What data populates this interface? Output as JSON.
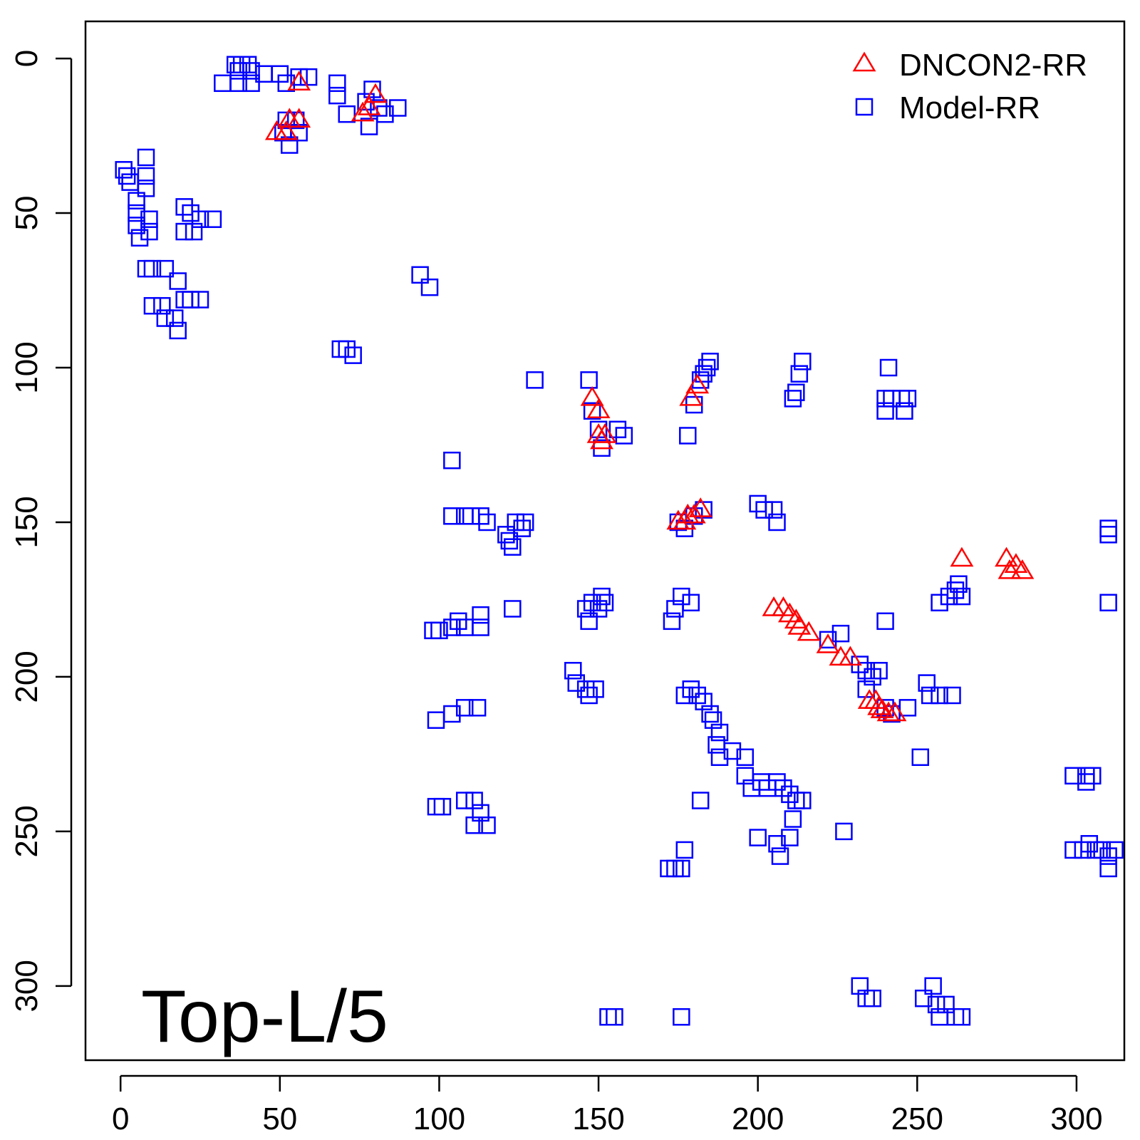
{
  "chart_data": {
    "type": "scatter",
    "title": "",
    "xlabel": "",
    "ylabel": "",
    "xlim": [
      -11,
      315
    ],
    "ylim": [
      -12,
      324
    ],
    "y_axis_inverted": true,
    "x_ticks": [
      0,
      50,
      100,
      150,
      200,
      250,
      300
    ],
    "x_tick_labels": [
      "0",
      "50",
      "100",
      "150",
      "200",
      "250",
      "300"
    ],
    "y_ticks": [
      0,
      50,
      100,
      150,
      200,
      250,
      300
    ],
    "y_tick_labels": [
      "0",
      "50",
      "100",
      "150",
      "200",
      "250",
      "300"
    ],
    "annotation": "Top-L/5",
    "legend_position": "top-right",
    "grid": false,
    "series": [
      {
        "name": "DNCON2-RR",
        "marker": "triangle",
        "color": "#ff0000",
        "points": [
          [
            56,
            8
          ],
          [
            80,
            12
          ],
          [
            76,
            18
          ],
          [
            78,
            16
          ],
          [
            53,
            20
          ],
          [
            56,
            20
          ],
          [
            49,
            24
          ],
          [
            52,
            24
          ],
          [
            148,
            110
          ],
          [
            150,
            114
          ],
          [
            150,
            122
          ],
          [
            152,
            122
          ],
          [
            151,
            124
          ],
          [
            181,
            106
          ],
          [
            179,
            110
          ],
          [
            175,
            150
          ],
          [
            177,
            150
          ],
          [
            178,
            148
          ],
          [
            180,
            148
          ],
          [
            182,
            146
          ],
          [
            264,
            162
          ],
          [
            278,
            162
          ],
          [
            279,
            166
          ],
          [
            281,
            164
          ],
          [
            283,
            166
          ],
          [
            205,
            178
          ],
          [
            208,
            178
          ],
          [
            210,
            180
          ],
          [
            212,
            182
          ],
          [
            213,
            184
          ],
          [
            216,
            186
          ],
          [
            222,
            190
          ],
          [
            226,
            194
          ],
          [
            229,
            194
          ],
          [
            235,
            208
          ],
          [
            237,
            208
          ],
          [
            238,
            210
          ],
          [
            239,
            211
          ],
          [
            241,
            212
          ],
          [
            243,
            212
          ]
        ]
      },
      {
        "name": "Model-RR",
        "marker": "square",
        "color": "#0000ff",
        "points": [
          [
            32,
            8
          ],
          [
            36,
            2
          ],
          [
            37,
            4
          ],
          [
            38,
            2
          ],
          [
            40,
            2
          ],
          [
            41,
            4
          ],
          [
            37,
            8
          ],
          [
            41,
            8
          ],
          [
            45,
            5
          ],
          [
            50,
            5
          ],
          [
            52,
            8
          ],
          [
            56,
            6
          ],
          [
            59,
            6
          ],
          [
            52,
            20
          ],
          [
            55,
            20
          ],
          [
            51,
            24
          ],
          [
            53,
            28
          ],
          [
            56,
            24
          ],
          [
            68,
            8
          ],
          [
            68,
            12
          ],
          [
            71,
            18
          ],
          [
            77,
            14
          ],
          [
            79,
            10
          ],
          [
            81,
            16
          ],
          [
            83,
            18
          ],
          [
            87,
            16
          ],
          [
            78,
            22
          ],
          [
            1,
            36
          ],
          [
            2,
            38
          ],
          [
            3,
            40
          ],
          [
            8,
            32
          ],
          [
            8,
            38
          ],
          [
            8,
            42
          ],
          [
            5,
            46
          ],
          [
            5,
            50
          ],
          [
            5,
            54
          ],
          [
            6,
            58
          ],
          [
            9,
            52
          ],
          [
            9,
            56
          ],
          [
            20,
            48
          ],
          [
            22,
            50
          ],
          [
            25,
            52
          ],
          [
            29,
            52
          ],
          [
            20,
            56
          ],
          [
            23,
            56
          ],
          [
            8,
            68
          ],
          [
            10,
            68
          ],
          [
            14,
            68
          ],
          [
            18,
            72
          ],
          [
            10,
            80
          ],
          [
            13,
            80
          ],
          [
            14,
            84
          ],
          [
            17,
            84
          ],
          [
            18,
            88
          ],
          [
            20,
            78
          ],
          [
            22,
            78
          ],
          [
            25,
            78
          ],
          [
            94,
            70
          ],
          [
            97,
            74
          ],
          [
            69,
            94
          ],
          [
            71,
            94
          ],
          [
            73,
            96
          ],
          [
            130,
            104
          ],
          [
            147,
            104
          ],
          [
            148,
            114
          ],
          [
            150,
            120
          ],
          [
            151,
            126
          ],
          [
            156,
            120
          ],
          [
            158,
            122
          ],
          [
            180,
            112
          ],
          [
            182,
            104
          ],
          [
            183,
            102
          ],
          [
            184,
            100
          ],
          [
            185,
            98
          ],
          [
            178,
            122
          ],
          [
            211,
            110
          ],
          [
            212,
            108
          ],
          [
            213,
            102
          ],
          [
            214,
            98
          ],
          [
            241,
            100
          ],
          [
            240,
            110
          ],
          [
            240,
            114
          ],
          [
            242,
            110
          ],
          [
            245,
            110
          ],
          [
            247,
            110
          ],
          [
            246,
            114
          ],
          [
            104,
            130
          ],
          [
            104,
            148
          ],
          [
            108,
            148
          ],
          [
            110,
            148
          ],
          [
            113,
            148
          ],
          [
            115,
            150
          ],
          [
            121,
            154
          ],
          [
            122,
            156
          ],
          [
            123,
            158
          ],
          [
            124,
            150
          ],
          [
            126,
            152
          ],
          [
            127,
            150
          ],
          [
            175,
            150
          ],
          [
            177,
            152
          ],
          [
            180,
            148
          ],
          [
            183,
            146
          ],
          [
            200,
            144
          ],
          [
            202,
            146
          ],
          [
            205,
            146
          ],
          [
            206,
            150
          ],
          [
            100,
            185
          ],
          [
            98,
            185
          ],
          [
            104,
            184
          ],
          [
            106,
            182
          ],
          [
            108,
            184
          ],
          [
            113,
            180
          ],
          [
            113,
            184
          ],
          [
            123,
            178
          ],
          [
            146,
            178
          ],
          [
            147,
            182
          ],
          [
            148,
            176
          ],
          [
            150,
            178
          ],
          [
            151,
            174
          ],
          [
            152,
            176
          ],
          [
            173,
            182
          ],
          [
            176,
            174
          ],
          [
            174,
            178
          ],
          [
            179,
            176
          ],
          [
            240,
            182
          ],
          [
            257,
            176
          ],
          [
            260,
            174
          ],
          [
            262,
            172
          ],
          [
            263,
            170
          ],
          [
            264,
            174
          ],
          [
            310,
            152
          ],
          [
            310,
            154
          ],
          [
            310,
            176
          ],
          [
            142,
            198
          ],
          [
            143,
            202
          ],
          [
            146,
            204
          ],
          [
            147,
            206
          ],
          [
            149,
            204
          ],
          [
            99,
            214
          ],
          [
            104,
            212
          ],
          [
            108,
            210
          ],
          [
            112,
            210
          ],
          [
            177,
            206
          ],
          [
            179,
            204
          ],
          [
            181,
            206
          ],
          [
            183,
            208
          ],
          [
            185,
            212
          ],
          [
            186,
            214
          ],
          [
            188,
            218
          ],
          [
            187,
            222
          ],
          [
            188,
            226
          ],
          [
            192,
            224
          ],
          [
            196,
            226
          ],
          [
            196,
            232
          ],
          [
            198,
            236
          ],
          [
            201,
            234
          ],
          [
            203,
            236
          ],
          [
            206,
            234
          ],
          [
            208,
            236
          ],
          [
            210,
            238
          ],
          [
            212,
            240
          ],
          [
            214,
            240
          ],
          [
            211,
            246
          ],
          [
            182,
            240
          ],
          [
            236,
            200
          ],
          [
            238,
            198
          ],
          [
            234,
            204
          ],
          [
            240,
            210
          ],
          [
            242,
            212
          ],
          [
            247,
            210
          ],
          [
            251,
            226
          ],
          [
            253,
            202
          ],
          [
            254,
            206
          ],
          [
            257,
            206
          ],
          [
            261,
            206
          ],
          [
            222,
            188
          ],
          [
            226,
            186
          ],
          [
            232,
            196
          ],
          [
            234,
            198
          ],
          [
            99,
            242
          ],
          [
            101,
            242
          ],
          [
            108,
            240
          ],
          [
            111,
            240
          ],
          [
            113,
            244
          ],
          [
            115,
            248
          ],
          [
            111,
            248
          ],
          [
            172,
            262
          ],
          [
            174,
            262
          ],
          [
            176,
            262
          ],
          [
            177,
            256
          ],
          [
            200,
            252
          ],
          [
            206,
            254
          ],
          [
            207,
            258
          ],
          [
            210,
            252
          ],
          [
            227,
            250
          ],
          [
            232,
            300
          ],
          [
            234,
            304
          ],
          [
            236,
            304
          ],
          [
            252,
            304
          ],
          [
            255,
            300
          ],
          [
            256,
            306
          ],
          [
            257,
            310
          ],
          [
            259,
            306
          ],
          [
            262,
            310
          ],
          [
            264,
            310
          ],
          [
            299,
            232
          ],
          [
            303,
            232
          ],
          [
            303,
            234
          ],
          [
            305,
            232
          ],
          [
            299,
            256
          ],
          [
            302,
            256
          ],
          [
            304,
            254
          ],
          [
            306,
            256
          ],
          [
            308,
            256
          ],
          [
            310,
            258
          ],
          [
            310,
            262
          ],
          [
            312,
            256
          ],
          [
            153,
            310
          ],
          [
            155,
            310
          ],
          [
            176,
            310
          ]
        ]
      }
    ]
  }
}
